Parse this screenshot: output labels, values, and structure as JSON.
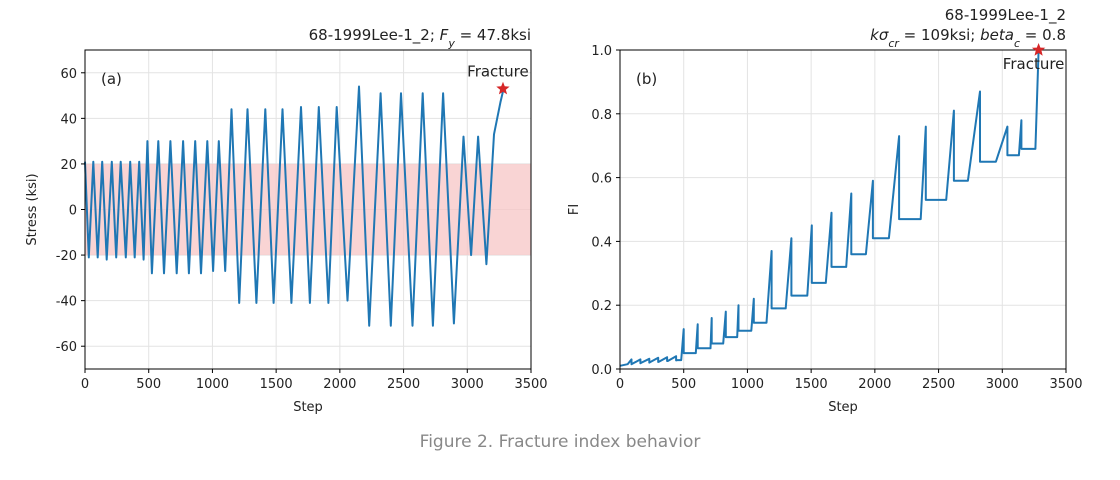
{
  "caption": "Figure 2. Fracture index behavior",
  "colors": {
    "line": "#1f77b4",
    "band": "#f7c6c6",
    "marker": "#d62728",
    "grid": "#e3e3e3"
  },
  "chart_data": [
    {
      "id": "a",
      "type": "line",
      "panel_label": "(a)",
      "title_parts": [
        "68-1999Lee-1_2; ",
        "F",
        "y",
        " = 47.8ksi"
      ],
      "xlabel": "Step",
      "ylabel": "Stress (ksi)",
      "xlim": [
        0,
        3500
      ],
      "ylim": [
        -70,
        70
      ],
      "xticks": [
        0,
        500,
        1000,
        1500,
        2000,
        2500,
        3000,
        3500
      ],
      "yticks": [
        -60,
        -40,
        -20,
        0,
        20,
        40,
        60
      ],
      "grid": true,
      "band": {
        "from": -20,
        "to": 20
      },
      "annotation": {
        "text": "Fracture",
        "x": 3280,
        "y": 53
      },
      "marker": {
        "x": 3280,
        "y": 53
      },
      "series": [
        {
          "x": [
            0,
            30,
            65,
            100,
            135,
            170,
            210,
            245,
            280,
            320,
            355,
            390,
            425,
            460,
            490,
            525,
            575,
            620,
            670,
            720,
            770,
            815,
            865,
            910,
            960,
            1005,
            1050,
            1100,
            1150,
            1210,
            1275,
            1345,
            1415,
            1480,
            1550,
            1620,
            1695,
            1765,
            1835,
            1910,
            1975,
            2060,
            2150,
            2230,
            2320,
            2400,
            2480,
            2570,
            2650,
            2730,
            2810,
            2895,
            2970,
            3030,
            3085,
            3150,
            3210,
            3260,
            3285
          ],
          "y": [
            21,
            -21,
            21,
            -21,
            21,
            -22,
            21,
            -21,
            21,
            -21,
            21,
            -21,
            21,
            -22,
            30,
            -28,
            30,
            -28,
            30,
            -28,
            30,
            -28,
            30,
            -28,
            30,
            -27,
            30,
            -27,
            44,
            -41,
            44,
            -41,
            44,
            -41,
            44,
            -41,
            45,
            -41,
            45,
            -41,
            45,
            -40,
            54,
            -51,
            51,
            -51,
            51,
            -51,
            51,
            -51,
            51,
            -50,
            32,
            -20,
            32,
            -24,
            33,
            47,
            53
          ]
        }
      ]
    },
    {
      "id": "b",
      "type": "line",
      "panel_label": "(b)",
      "title_line1": "68-1999Lee-1_2",
      "title_line2_parts": [
        "k",
        "σ",
        "cr",
        " = 109ksi; ",
        "beta",
        "c",
        " = 0.8"
      ],
      "xlabel": "Step",
      "ylabel": "FI",
      "xlim": [
        0,
        3500
      ],
      "ylim": [
        0,
        1.0
      ],
      "xticks": [
        0,
        500,
        1000,
        1500,
        2000,
        2500,
        3000,
        3500
      ],
      "yticks": [
        0.0,
        0.2,
        0.4,
        0.6,
        0.8,
        1.0
      ],
      "ytick_labels": [
        "0.0",
        "0.2",
        "0.4",
        "0.6",
        "0.8",
        "1.0"
      ],
      "grid": true,
      "annotation": {
        "text": "Fracture",
        "x": 3285,
        "y": 0.99
      },
      "marker": {
        "x": 3285,
        "y": 1.0
      },
      "series": [
        {
          "x": [
            0,
            60,
            90,
            90,
            95,
            160,
            160,
            165,
            230,
            230,
            235,
            300,
            300,
            305,
            370,
            370,
            375,
            440,
            440,
            450,
            480,
            500,
            500,
            520,
            595,
            610,
            610,
            630,
            710,
            720,
            720,
            740,
            810,
            830,
            830,
            850,
            920,
            930,
            930,
            950,
            1030,
            1050,
            1050,
            1070,
            1150,
            1190,
            1190,
            1220,
            1300,
            1345,
            1345,
            1370,
            1470,
            1505,
            1505,
            1530,
            1615,
            1660,
            1660,
            1685,
            1775,
            1815,
            1815,
            1845,
            1930,
            1985,
            1985,
            2010,
            2110,
            2190,
            2190,
            2230,
            2360,
            2400,
            2400,
            2450,
            2560,
            2620,
            2620,
            2650,
            2730,
            2825,
            2825,
            2880,
            2950,
            3040,
            3040,
            3070,
            3130,
            3150,
            3150,
            3175,
            3260,
            3285
          ],
          "y": [
            0.01,
            0.015,
            0.03,
            0.015,
            0.016,
            0.03,
            0.018,
            0.019,
            0.032,
            0.02,
            0.021,
            0.035,
            0.022,
            0.023,
            0.037,
            0.025,
            0.025,
            0.04,
            0.027,
            0.028,
            0.028,
            0.125,
            0.05,
            0.05,
            0.05,
            0.14,
            0.065,
            0.065,
            0.065,
            0.16,
            0.08,
            0.08,
            0.08,
            0.18,
            0.1,
            0.1,
            0.1,
            0.2,
            0.12,
            0.12,
            0.12,
            0.22,
            0.145,
            0.145,
            0.145,
            0.37,
            0.19,
            0.19,
            0.19,
            0.41,
            0.23,
            0.23,
            0.23,
            0.45,
            0.27,
            0.27,
            0.27,
            0.49,
            0.32,
            0.32,
            0.32,
            0.55,
            0.36,
            0.36,
            0.36,
            0.59,
            0.41,
            0.41,
            0.41,
            0.73,
            0.47,
            0.47,
            0.47,
            0.76,
            0.53,
            0.53,
            0.53,
            0.81,
            0.59,
            0.59,
            0.59,
            0.87,
            0.65,
            0.65,
            0.65,
            0.76,
            0.67,
            0.67,
            0.67,
            0.78,
            0.69,
            0.69,
            0.69,
            1.0
          ]
        }
      ]
    }
  ]
}
